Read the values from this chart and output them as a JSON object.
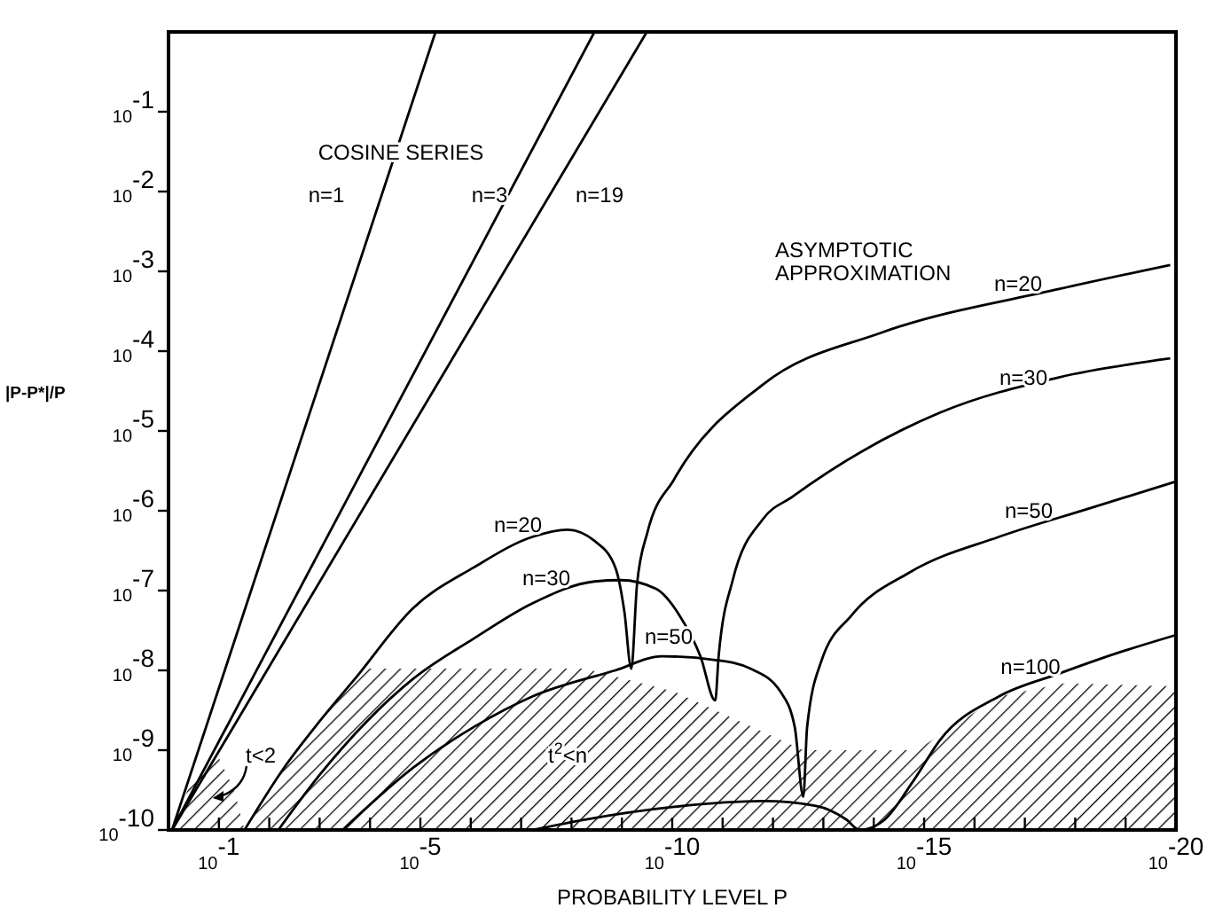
{
  "chart_data": {
    "type": "line",
    "xlabel": "PROBABILITY LEVEL P",
    "ylabel": "|P-P*|/P",
    "log": "xy",
    "line_style": "solid",
    "xlim": [
      1,
      1e-20
    ],
    "ylim": [
      1e-10,
      1
    ],
    "xticks": [
      {
        "value": 0.1,
        "label": "10$^{-1}$"
      },
      {
        "value": 0.01,
        "label": null
      },
      {
        "value": 0.001,
        "label": null
      },
      {
        "value": 0.0001,
        "label": null
      },
      {
        "value": 1e-05,
        "label": "10$^{-5}$"
      },
      {
        "value": 1e-06,
        "label": null
      },
      {
        "value": 1e-07,
        "label": null
      },
      {
        "value": 1e-08,
        "label": null
      },
      {
        "value": 1e-09,
        "label": null
      },
      {
        "value": 1e-10,
        "label": "10$^{-10}$"
      },
      {
        "value": 1e-11,
        "label": null
      },
      {
        "value": 1e-12,
        "label": null
      },
      {
        "value": 1e-13,
        "label": null
      },
      {
        "value": 1e-14,
        "label": null
      },
      {
        "value": 1e-15,
        "label": "10$^{-15}$"
      },
      {
        "value": 1e-16,
        "label": null
      },
      {
        "value": 1e-17,
        "label": null
      },
      {
        "value": 1e-18,
        "label": null
      },
      {
        "value": 1e-19,
        "label": null
      },
      {
        "value": 1e-20,
        "label": "10$^{-20}$"
      }
    ],
    "yticks": [
      {
        "value": 0.1,
        "label": "10$^{-1}$"
      },
      {
        "value": 0.01,
        "label": "10$^{-2}$"
      },
      {
        "value": 0.001,
        "label": "10$^{-3}$"
      },
      {
        "value": 0.0001,
        "label": "10$^{-4}$"
      },
      {
        "value": 1e-05,
        "label": "10$^{-5}$"
      },
      {
        "value": 1e-06,
        "label": "10$^{-6}$"
      },
      {
        "value": 1e-07,
        "label": "10$^{-7}$"
      },
      {
        "value": 1e-08,
        "label": "10$^{-8}$"
      },
      {
        "value": 1e-09,
        "label": "10$^{-9}$"
      },
      {
        "value": 1e-10,
        "label": "10$^{-10}$"
      }
    ],
    "series": [
      {
        "type": "area",
        "color": "#000000",
        "x": [
          0.85,
          0.3,
          0.11,
          0.05,
          0.031,
          0.0051,
          0.001,
          0.000135,
          5.4e-09,
          9.1e-11,
          2.5e-13,
          1.4e-15,
          3.3e-17,
          1.65e-18,
          1.05e-20
        ],
        "values": [
          1e-10,
          5.4e-10,
          9.1e-10,
          3.2e-10,
          1e-10,
          6e-10,
          2.3e-09,
          1.05e-08,
          1.05e-08,
          5.4e-09,
          1e-09,
          1e-09,
          4.7e-09,
          6.9e-09,
          6.3e-09
        ]
      },
      {
        "name": "n=1",
        "color": "#000000",
        "x": [
          0.85,
          5e-06
        ],
        "values": [
          1e-10,
          1
        ]
      },
      {
        "name": "n=3",
        "color": "#000000",
        "x": [
          0.85,
          3.5e-09
        ],
        "values": [
          1e-10,
          1
        ]
      },
      {
        "name": "n=19",
        "color": "#000000",
        "x": [
          0.85,
          3.2e-10
        ],
        "values": [
          1e-10,
          1
        ]
      },
      {
        "name": "n=20",
        "color": "#000000",
        "x": [
          0.031,
          0.0051,
          0.001,
          0.0002,
          1.4e-05,
          8.7e-07,
          6e-08,
          1.2e-08,
          3.5e-09,
          1.35e-09,
          8.9e-10,
          6.5e-10,
          5e-10,
          3.1e-10,
          9.1e-11,
          1.6e-12,
          7.1e-15,
          2.1e-18,
          1.3e-20
        ],
        "values": [
          1e-10,
          6e-10,
          2.3e-09,
          7.8e-09,
          6e-08,
          1.95e-07,
          4.7e-07,
          5.8e-07,
          4.2e-07,
          1.95e-07,
          5.4e-08,
          1.05e-08,
          1.2e-07,
          5.4e-07,
          2.5e-06,
          3.8e-05,
          0.00017,
          0.0006,
          0.0012
        ]
      },
      {
        "name": "n=30",
        "color": "#000000",
        "x": [
          0.0066,
          0.001,
          0.000115,
          1.4e-05,
          8.7e-07,
          6e-08,
          3.5e-09,
          1.05e-09,
          2.1e-10,
          7.2e-11,
          2.75e-11,
          1.4e-11,
          1.2e-11,
          6.3e-12,
          1.6e-12,
          4.1e-13,
          4.8e-16,
          2.1e-18,
          1.3e-20
        ],
        "values": [
          1e-10,
          4.9e-10,
          2.3e-09,
          7.8e-09,
          2.5e-08,
          6.9e-08,
          1.3e-07,
          1.35e-07,
          1.05e-07,
          4.9e-08,
          1.5e-08,
          4.2e-09,
          1.5e-08,
          1.35e-07,
          7.8e-07,
          1.5e-06,
          1.7e-05,
          4.7e-05,
          8.1e-05
        ]
      },
      {
        "name": "n=50",
        "color": "#000000",
        "x": [
          0.00035,
          1.4e-05,
          8.7e-07,
          6e-08,
          1.35e-09,
          1.6e-10,
          1.4e-11,
          2.8e-12,
          7.1e-13,
          3.7e-13,
          2.5e-13,
          2.1e-13,
          1.1e-13,
          2.75e-14,
          1.9e-15,
          3.3e-17,
          5.8e-19,
          1.05e-20
        ],
        "values": [
          1e-10,
          6e-10,
          1.95e-09,
          4.7e-09,
          1e-08,
          1.5e-08,
          1.35e-08,
          1.05e-08,
          5.4e-09,
          1.95e-09,
          2.6e-10,
          1.95e-09,
          1.3e-08,
          4.9e-08,
          1.7e-07,
          4.7e-07,
          1.05e-06,
          2.3e-06
        ]
      },
      {
        "name": "n=100",
        "color": "#000000",
        "x": [
          6e-08,
          5.4e-09,
          9.1e-11,
          1.6e-12,
          1.4e-13,
          3.5e-14,
          1.9e-14,
          6.5e-15,
          1.6e-15,
          4.8e-16,
          3.3e-17,
          2.1e-18,
          1.45e-19,
          1.05e-20
        ],
        "values": [
          1e-10,
          1.35e-10,
          1.95e-10,
          2.3e-10,
          2e-10,
          1.35e-10,
          1e-10,
          1.3e-10,
          4.2e-10,
          1.35e-09,
          4.7e-09,
          9.1e-09,
          1.65e-08,
          2.75e-08
        ]
      }
    ],
    "annotations": [
      "COSINE SERIES",
      "ASYMPTOTIC APPROXIMATION",
      "t<2",
      "t$^{2}$<n"
    ]
  }
}
